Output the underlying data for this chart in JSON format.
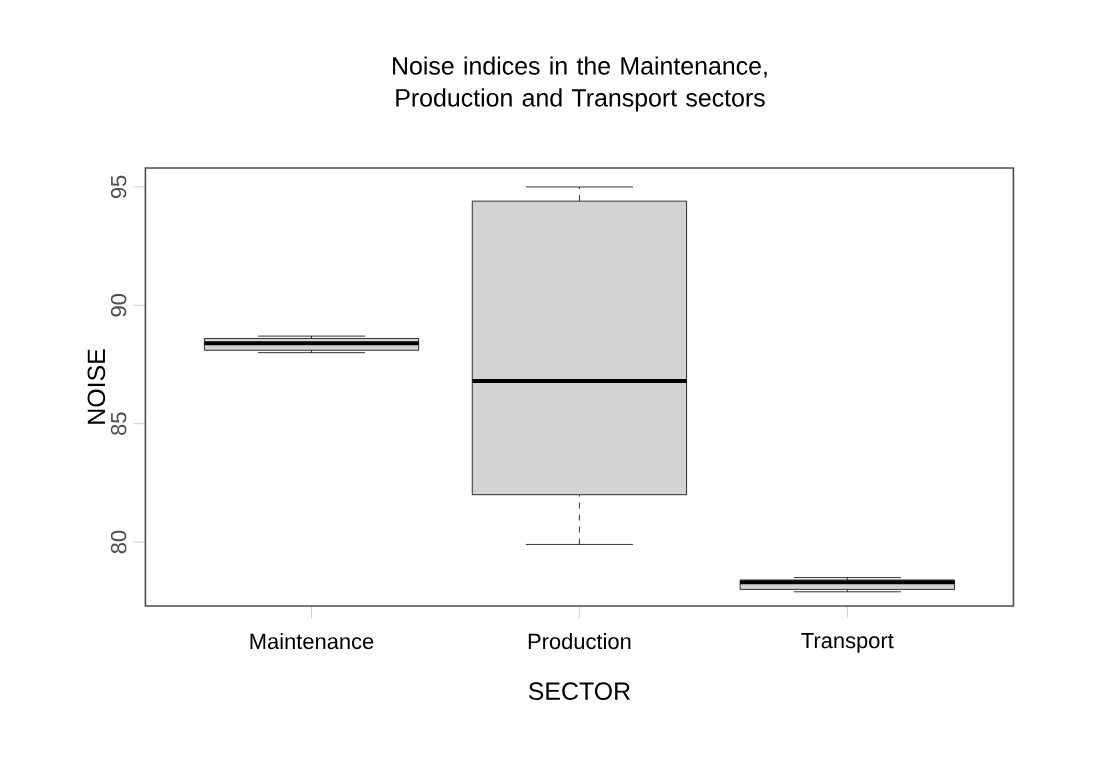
{
  "chart_data": {
    "type": "box",
    "title": "Noise indices in the Maintenance, Production and Transport sectors",
    "xlabel": "SECTOR",
    "ylabel": "NOISE",
    "categories": [
      "Maintenance",
      "Production",
      "Transport"
    ],
    "boxes": [
      {
        "low": 88.0,
        "q1": 88.1,
        "median": 88.4,
        "q3": 88.6,
        "high": 88.7
      },
      {
        "low": 79.9,
        "q1": 82.0,
        "median": 86.8,
        "q3": 94.4,
        "high": 95.0
      },
      {
        "low": 77.9,
        "q1": 78.0,
        "median": 78.3,
        "q3": 78.4,
        "high": 78.5
      }
    ],
    "colors": [
      "#d3d3d3",
      "#d3d3d3",
      "#d3d3d3"
    ],
    "ylim": [
      77.3,
      95.8
    ],
    "yticks": [
      80,
      85,
      90,
      95
    ],
    "grid": false
  }
}
